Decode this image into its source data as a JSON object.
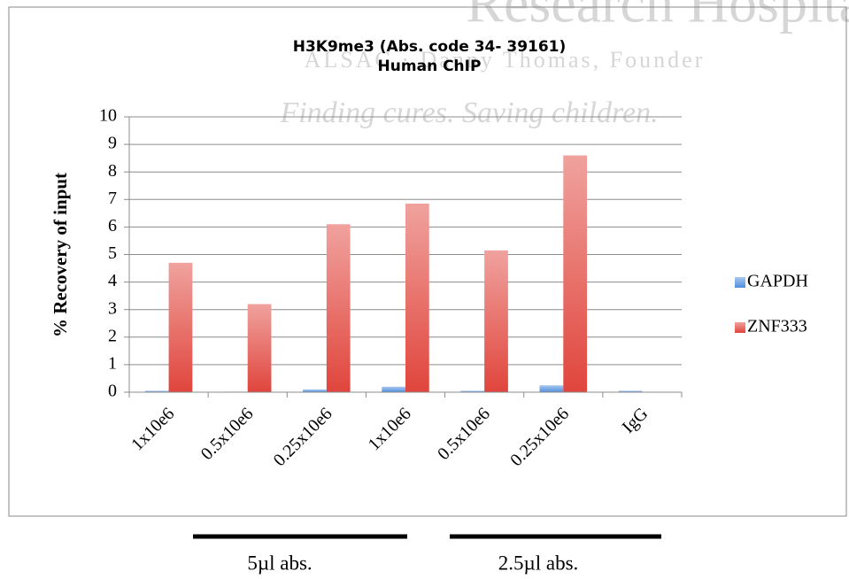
{
  "chart_data": {
    "type": "bar",
    "title": "H3K9me3 (Abs. code 34- 39161)",
    "subtitle": "Human ChIP",
    "y_label": "% Recovery of input",
    "categories": [
      "1x10e6",
      "0.5x10e6",
      "0.25x10e6",
      "1x10e6",
      "0.5x10e6",
      "0.25x10e6",
      "IgG"
    ],
    "series": [
      {
        "name": "GAPDH",
        "color": "#4f8fdc",
        "values": [
          0.05,
          0.02,
          0.1,
          0.2,
          0.05,
          0.25,
          0.05
        ]
      },
      {
        "name": "ZNF333",
        "color": "#e0453c",
        "values": [
          4.7,
          3.2,
          6.1,
          6.85,
          5.15,
          8.6,
          0
        ]
      }
    ],
    "ylim": [
      0,
      10
    ],
    "yticks": [
      0,
      1,
      2,
      3,
      4,
      5,
      6,
      7,
      8,
      9,
      10
    ],
    "grid": true,
    "legend": "right",
    "groups": [
      {
        "label": "5µl abs."
      },
      {
        "label": "2.5µl abs."
      }
    ],
    "watermark": [
      "Research Hospital",
      "ALSAC · Danny Thomas, Founder",
      "Finding cures. Saving children."
    ]
  }
}
